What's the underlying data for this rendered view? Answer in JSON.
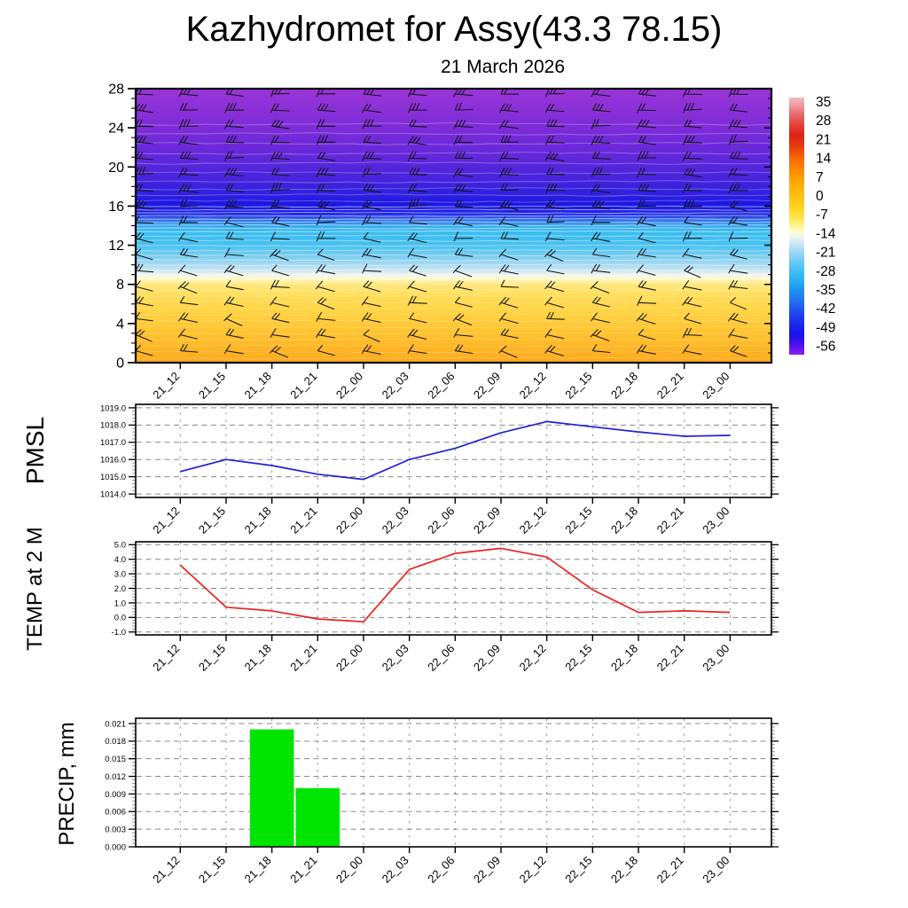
{
  "title": "Kazhydromet for Assy(43.3 78.15)",
  "subtitle": "21 March 2026",
  "colors": {
    "frame": "#000000",
    "grid": "#8a8a8a",
    "minor_tick": "#999999",
    "pmsl_line": "#2020d8",
    "temp_line": "#ee2020",
    "precip_bar": "#00e400",
    "barb": "#141414",
    "contour": "#ffffff"
  },
  "chart_data": [
    {
      "id": "cross-section",
      "type": "heatmap",
      "title": "21 March 2026",
      "x": [
        "21_12",
        "21_15",
        "21_18",
        "21_21",
        "22_00",
        "22_03",
        "22_06",
        "22_09",
        "22_12",
        "22_15",
        "22_18",
        "22_21",
        "23_00"
      ],
      "y_tick_labels": [
        "0",
        "4",
        "8",
        "12",
        "16",
        "20",
        "24",
        "28"
      ],
      "ylim": [
        0,
        28
      ],
      "overlay": "wind-barbs",
      "wind_barb_grid": {
        "columns": 14,
        "rows": 17
      },
      "note": "time-height temperature field: warm orange (~+20) below 8, pale/white band near 9, cyan-blue (-14..-35) from 9 to 16, dark blue then purple (-56 and colder) from 21 to 28; thin white contour lines throughout",
      "colorbar_ticks": [
        "35",
        "28",
        "21",
        "14",
        "7",
        "0",
        "-7",
        "-14",
        "-21",
        "-28",
        "-35",
        "-42",
        "-49",
        "-56"
      ],
      "field_gradient": [
        {
          "offset": 0.0,
          "color": "#9a35d8"
        },
        {
          "offset": 0.143,
          "color": "#7c2cd8"
        },
        {
          "offset": 0.25,
          "color": "#6128da"
        },
        {
          "offset": 0.339,
          "color": "#4124dc"
        },
        {
          "offset": 0.393,
          "color": "#2d1ee0"
        },
        {
          "offset": 0.418,
          "color": "#1d18e2"
        },
        {
          "offset": 0.454,
          "color": "#1f22e4"
        },
        {
          "offset": 0.475,
          "color": "#3464ea"
        },
        {
          "offset": 0.5,
          "color": "#38a8ee"
        },
        {
          "offset": 0.518,
          "color": "#38bcf0"
        },
        {
          "offset": 0.571,
          "color": "#48c2f0"
        },
        {
          "offset": 0.614,
          "color": "#7ecef0"
        },
        {
          "offset": 0.646,
          "color": "#aedcf2"
        },
        {
          "offset": 0.668,
          "color": "#d4eaf4"
        },
        {
          "offset": 0.679,
          "color": "#f0f4ee"
        },
        {
          "offset": 0.693,
          "color": "#fffad2"
        },
        {
          "offset": 0.714,
          "color": "#ffe87e"
        },
        {
          "offset": 0.75,
          "color": "#ffdf60"
        },
        {
          "offset": 0.804,
          "color": "#ffd546"
        },
        {
          "offset": 0.875,
          "color": "#ffc634"
        },
        {
          "offset": 0.946,
          "color": "#ffb626"
        },
        {
          "offset": 1.0,
          "color": "#ffaa1e"
        }
      ],
      "colorbar_gradient": [
        {
          "offset": 0.0,
          "color": "#f2bac2"
        },
        {
          "offset": 0.03,
          "color": "#ee9aa2"
        },
        {
          "offset": 0.06,
          "color": "#e87078"
        },
        {
          "offset": 0.1,
          "color": "#e24840"
        },
        {
          "offset": 0.145,
          "color": "#dd2218"
        },
        {
          "offset": 0.19,
          "color": "#e63c0c"
        },
        {
          "offset": 0.235,
          "color": "#f56606"
        },
        {
          "offset": 0.28,
          "color": "#fc8a04"
        },
        {
          "offset": 0.33,
          "color": "#ffa906"
        },
        {
          "offset": 0.38,
          "color": "#ffc012"
        },
        {
          "offset": 0.43,
          "color": "#ffd422"
        },
        {
          "offset": 0.47,
          "color": "#ffe650"
        },
        {
          "offset": 0.5,
          "color": "#fff69e"
        },
        {
          "offset": 0.525,
          "color": "#fffdd0"
        },
        {
          "offset": 0.545,
          "color": "#e8f4f8"
        },
        {
          "offset": 0.575,
          "color": "#c2e2f4"
        },
        {
          "offset": 0.615,
          "color": "#8cd2f4"
        },
        {
          "offset": 0.655,
          "color": "#54c4f4"
        },
        {
          "offset": 0.7,
          "color": "#30b4f2"
        },
        {
          "offset": 0.745,
          "color": "#1e96ee"
        },
        {
          "offset": 0.79,
          "color": "#2272ee"
        },
        {
          "offset": 0.835,
          "color": "#2248ee"
        },
        {
          "offset": 0.88,
          "color": "#1b28ec"
        },
        {
          "offset": 0.92,
          "color": "#1814e8"
        },
        {
          "offset": 0.95,
          "color": "#3c10ea"
        },
        {
          "offset": 0.975,
          "color": "#6414ec"
        },
        {
          "offset": 1.0,
          "color": "#8c1eee"
        }
      ]
    },
    {
      "id": "pmsl",
      "type": "line",
      "ylabel": "PMSL",
      "color": "#2020d8",
      "x": [
        "21_12",
        "21_15",
        "21_18",
        "21_21",
        "22_00",
        "22_03",
        "22_06",
        "22_09",
        "22_12",
        "22_15",
        "22_18",
        "22_21",
        "23_00"
      ],
      "values": [
        1015.3,
        1016.0,
        1015.65,
        1015.15,
        1014.85,
        1016.0,
        1016.65,
        1017.55,
        1018.2,
        1017.9,
        1017.6,
        1017.35,
        1017.4
      ],
      "y_tick_labels": [
        "1014.0",
        "1015.0",
        "1016.0",
        "1017.0",
        "1018.0",
        "1019.0"
      ],
      "ylim": [
        1014,
        1019
      ],
      "grid": true
    },
    {
      "id": "temp-2m",
      "type": "line",
      "ylabel": "TEMP at 2 M",
      "color": "#ee2020",
      "x": [
        "21_12",
        "21_15",
        "21_18",
        "21_21",
        "22_00",
        "22_03",
        "22_06",
        "22_09",
        "22_12",
        "22_15",
        "22_18",
        "22_21",
        "23_00"
      ],
      "values": [
        3.6,
        0.7,
        0.45,
        -0.1,
        -0.3,
        3.3,
        4.4,
        4.75,
        4.15,
        1.9,
        0.35,
        0.45,
        0.35
      ],
      "y_tick_labels": [
        "-1.0",
        "0.0",
        "1.0",
        "2.0",
        "3.0",
        "4.0",
        "5.0"
      ],
      "ylim": [
        -1,
        5
      ],
      "grid": true
    },
    {
      "id": "precip",
      "type": "bar",
      "ylabel": "PRECIP, mm",
      "color": "#00e400",
      "x": [
        "21_12",
        "21_15",
        "21_18",
        "21_21",
        "22_00",
        "22_03",
        "22_06",
        "22_09",
        "22_12",
        "22_15",
        "22_18",
        "22_21",
        "23_00"
      ],
      "values": [
        0,
        0,
        0.02,
        0.01,
        0,
        0,
        0,
        0,
        0,
        0,
        0,
        0,
        0
      ],
      "y_tick_labels": [
        "0.000",
        "0.003",
        "0.006",
        "0.009",
        "0.012",
        "0.015",
        "0.018",
        "0.021"
      ],
      "ylim": [
        0,
        0.021
      ],
      "grid": true
    }
  ]
}
